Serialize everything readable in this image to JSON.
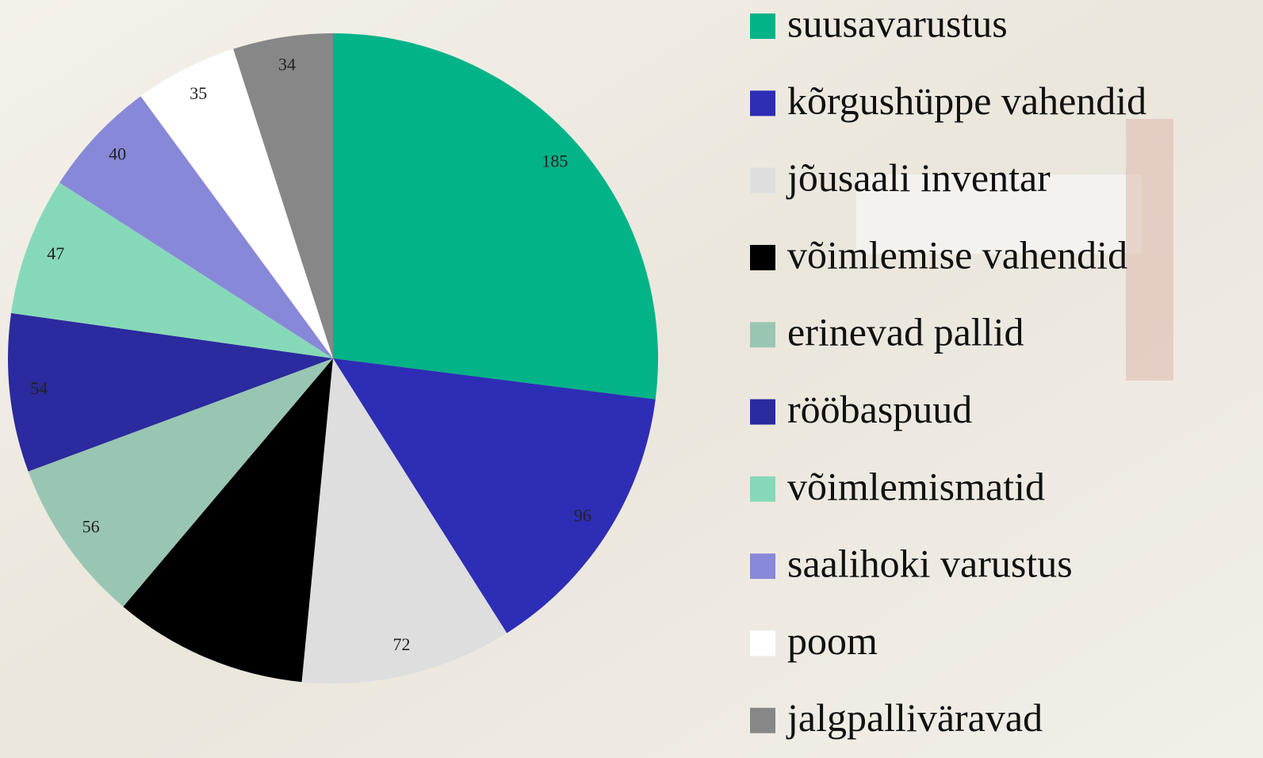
{
  "chart_data": {
    "type": "pie",
    "categories": [
      "suusavarustus",
      "kõrgushüppe vahendid",
      "jõusaali inventar",
      "võimlemise vahendid",
      "erinevad pallid",
      "rööbaspuud",
      "võimlemismatid",
      "saalihoki varustus",
      "poom",
      "jalgpalliväravad"
    ],
    "values": [
      185,
      96,
      72,
      66,
      56,
      54,
      47,
      40,
      35,
      34
    ],
    "value_labels": [
      "185",
      "96",
      "72",
      null,
      "56",
      "54",
      "47",
      "40",
      "35",
      "34"
    ],
    "colors": [
      "#02b388",
      "#2e2db5",
      "#dedede",
      "#000000",
      "#99c6b2",
      "#2b2a9e",
      "#86d9b8",
      "#8888d8",
      "#ffffff",
      "#878787"
    ],
    "legend": "right"
  }
}
